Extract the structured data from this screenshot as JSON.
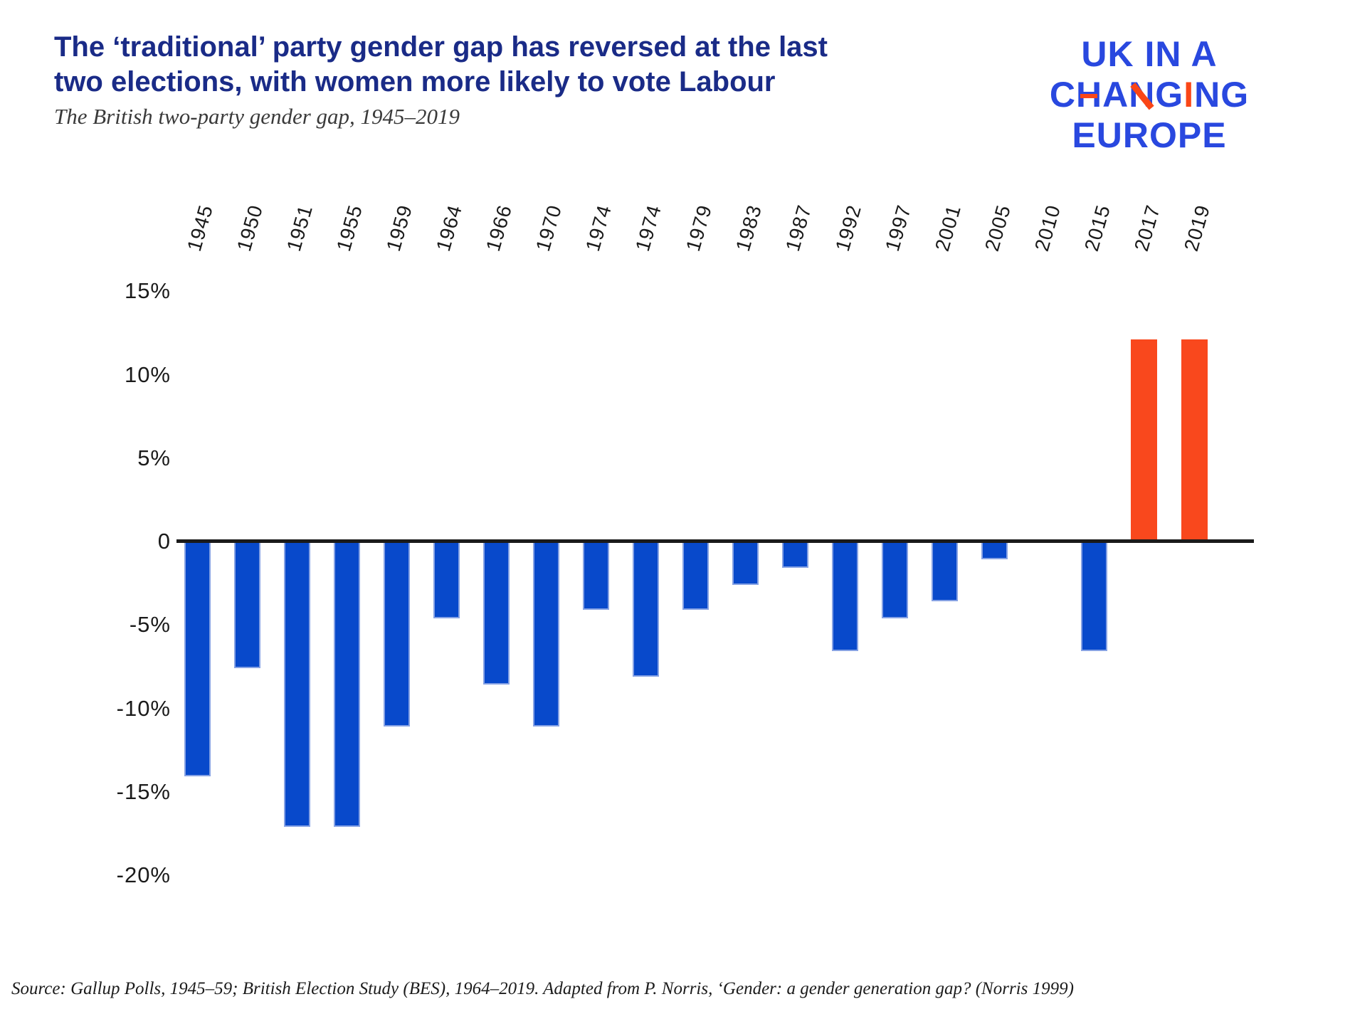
{
  "header": {
    "title": "The ‘traditional’ party gender gap has reversed at the last two elections, with women more likely to vote Labour",
    "subtitle": "The British two-party gender gap, 1945–2019"
  },
  "logo": {
    "line1": "UK IN A",
    "line2_letters": [
      "C",
      "H",
      "A",
      "N",
      "G",
      "I",
      "N",
      "G"
    ],
    "line3": "EUROPE",
    "blue": "#2948df",
    "orange": "#fa4616"
  },
  "chart_data": {
    "type": "bar",
    "title": "The British two-party gender gap, 1945–2019",
    "categories": [
      "1945",
      "1950",
      "1951",
      "1955",
      "1959",
      "1964",
      "1966",
      "1970",
      "1974",
      "1974",
      "1979",
      "1983",
      "1987",
      "1992",
      "1997",
      "2001",
      "2005",
      "2010",
      "2015",
      "2017",
      "2019"
    ],
    "values": [
      -14,
      -7.5,
      -17,
      -17,
      -11,
      -4.5,
      -8.5,
      -11,
      -4,
      -8,
      -4,
      -2.5,
      -1.5,
      -6.5,
      -4.5,
      -3.5,
      -1,
      0,
      -6.5,
      12,
      12
    ],
    "yticks": [
      {
        "value": 15,
        "label": "15%"
      },
      {
        "value": 10,
        "label": "10%"
      },
      {
        "value": 5,
        "label": "5%"
      },
      {
        "value": 0,
        "label": "0"
      },
      {
        "value": -5,
        "label": "-5%"
      },
      {
        "value": -10,
        "label": "-10%"
      },
      {
        "value": -15,
        "label": "-15%"
      },
      {
        "value": -20,
        "label": "-20%"
      }
    ],
    "ylim": [
      -20,
      15
    ],
    "xlabel": "",
    "ylabel": "",
    "grid": false,
    "legend": "none",
    "colors": {
      "negative_bar": "#0849cb",
      "positive_bar": "#f9481d",
      "axis_line": "#1a1a1a"
    }
  },
  "source": {
    "text": "Source: Gallup Polls, 1945–59; British Election Study (BES), 1964–2019. Adapted from P. Norris, ‘Gender: a gender generation gap? (Norris 1999)"
  }
}
